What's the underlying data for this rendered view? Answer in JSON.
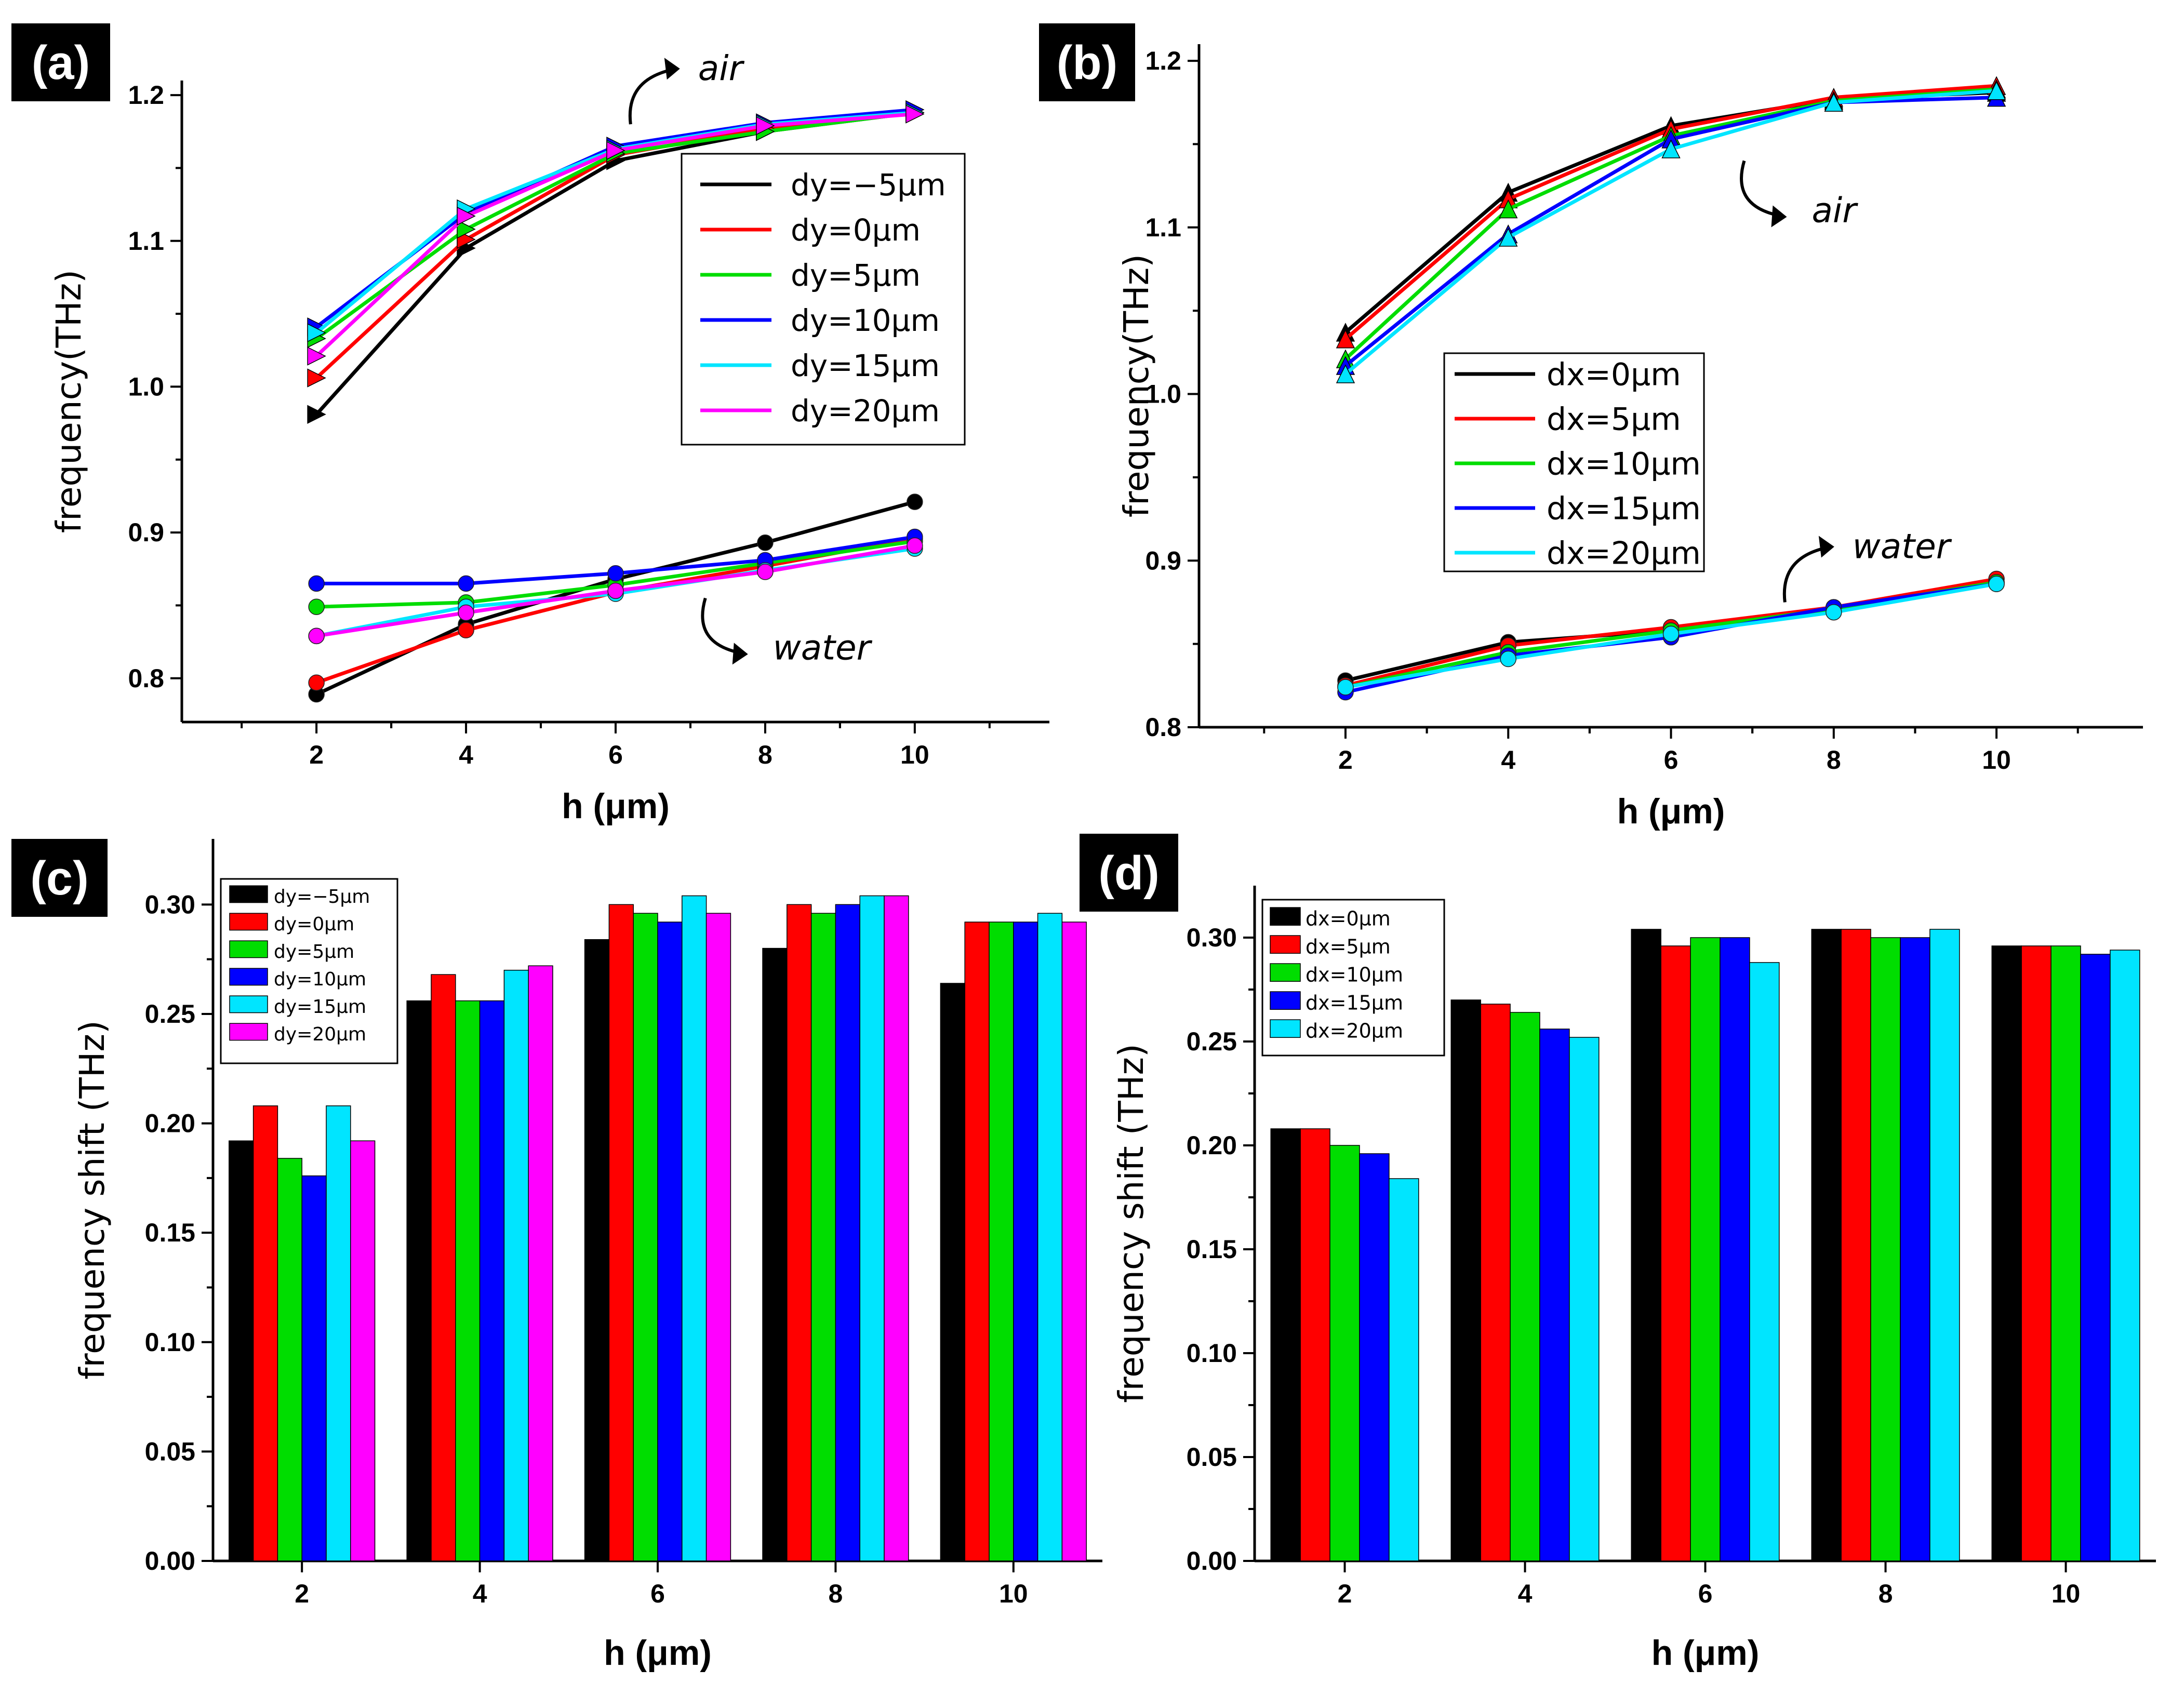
{
  "chart_data": [
    {
      "id": "a",
      "type": "line",
      "panel_label": "(a)",
      "xlabel": "h (μm)",
      "ylabel": "frequency(THz)",
      "x": [
        2,
        4,
        6,
        8,
        10
      ],
      "xticks": [
        "2",
        "4",
        "6",
        "8",
        "10"
      ],
      "xlim": [
        0.2,
        11.8
      ],
      "ylim": [
        0.77,
        1.21
      ],
      "yticks": [
        "0.8",
        "0.9",
        "1.0",
        "1.1",
        "1.2"
      ],
      "ytick_values": [
        0.8,
        0.9,
        1.0,
        1.1,
        1.2
      ],
      "legend_position": "top-right",
      "series": [
        {
          "name": "dy=−5μm",
          "color": "#000000",
          "air": [
            0.981,
            1.095,
            1.155,
            1.175,
            1.188
          ],
          "water": [
            0.789,
            0.837,
            0.868,
            0.893,
            0.921
          ]
        },
        {
          "name": "dy=0μm",
          "color": "#ff0000",
          "air": [
            1.006,
            1.101,
            1.159,
            1.177,
            1.188
          ],
          "water": [
            0.797,
            0.833,
            0.859,
            0.877,
            0.896
          ]
        },
        {
          "name": "dy=5μm",
          "color": "#00dd00",
          "air": [
            1.033,
            1.108,
            1.16,
            1.175,
            1.188
          ],
          "water": [
            0.849,
            0.852,
            0.864,
            0.879,
            0.894
          ]
        },
        {
          "name": "dy=10μm",
          "color": "#0000ff",
          "air": [
            1.041,
            1.119,
            1.165,
            1.181,
            1.19
          ],
          "water": [
            0.865,
            0.865,
            0.872,
            0.881,
            0.897
          ]
        },
        {
          "name": "dy=15μm",
          "color": "#00e5ff",
          "air": [
            1.037,
            1.122,
            1.163,
            1.18,
            1.188
          ],
          "water": [
            0.829,
            0.849,
            0.858,
            0.874,
            0.889
          ]
        },
        {
          "name": "dy=20μm",
          "color": "#ff00ff",
          "air": [
            1.021,
            1.117,
            1.162,
            1.179,
            1.187
          ],
          "water": [
            0.829,
            0.845,
            0.86,
            0.873,
            0.891
          ]
        }
      ],
      "annotations": [
        {
          "text": "air",
          "anchor": [
            6.2,
            1.18
          ],
          "direction": "up-right"
        },
        {
          "text": "water",
          "anchor": [
            7.2,
            0.855
          ],
          "direction": "down-right"
        }
      ]
    },
    {
      "id": "b",
      "type": "line",
      "panel_label": "(b)",
      "xlabel": "h (μm)",
      "ylabel": "frequency(THz)",
      "x": [
        2,
        4,
        6,
        8,
        10
      ],
      "xticks": [
        "2",
        "4",
        "6",
        "8",
        "10"
      ],
      "xlim": [
        0.2,
        11.8
      ],
      "ylim": [
        0.8,
        1.21
      ],
      "yticks": [
        "0.8",
        "0.9",
        "1.0",
        "1.1",
        "1.2"
      ],
      "ytick_values": [
        0.8,
        0.9,
        1.0,
        1.1,
        1.2
      ],
      "legend_position": "center-left",
      "series": [
        {
          "name": "dx=0μm",
          "color": "#000000",
          "air": [
            1.037,
            1.121,
            1.161,
            1.177,
            1.181
          ],
          "water": [
            0.828,
            0.851,
            0.858,
            0.872,
            0.887
          ]
        },
        {
          "name": "dx=5μm",
          "color": "#ff0000",
          "air": [
            1.033,
            1.117,
            1.159,
            1.178,
            1.185
          ],
          "water": [
            0.825,
            0.849,
            0.86,
            0.872,
            0.889
          ]
        },
        {
          "name": "dx=10μm",
          "color": "#00dd00",
          "air": [
            1.021,
            1.111,
            1.155,
            1.176,
            1.183
          ],
          "water": [
            0.824,
            0.845,
            0.858,
            0.871,
            0.887
          ]
        },
        {
          "name": "dx=15μm",
          "color": "#0000ff",
          "air": [
            1.017,
            1.096,
            1.153,
            1.175,
            1.178
          ],
          "water": [
            0.821,
            0.843,
            0.854,
            0.872,
            0.886
          ]
        },
        {
          "name": "dx=20μm",
          "color": "#00e5ff",
          "air": [
            1.012,
            1.094,
            1.147,
            1.175,
            1.182
          ],
          "water": [
            0.824,
            0.841,
            0.856,
            0.869,
            0.886
          ]
        }
      ],
      "annotations": [
        {
          "text": "air",
          "anchor": [
            6.9,
            1.14
          ],
          "direction": "down-right"
        },
        {
          "text": "water",
          "anchor": [
            7.4,
            0.875
          ],
          "direction": "up-right"
        }
      ]
    },
    {
      "id": "c",
      "type": "bar",
      "panel_label": "(c)",
      "xlabel": "h (μm)",
      "ylabel": "frequency shift (THz)",
      "categories": [
        "2",
        "4",
        "6",
        "8",
        "10"
      ],
      "ylim": [
        0,
        0.33
      ],
      "yticks": [
        "0.00",
        "0.05",
        "0.10",
        "0.15",
        "0.20",
        "0.25",
        "0.30"
      ],
      "ytick_values": [
        0,
        0.05,
        0.1,
        0.15,
        0.2,
        0.25,
        0.3
      ],
      "legend_position": "top-left",
      "series": [
        {
          "name": "dy=−5μm",
          "color": "#000000",
          "values": [
            0.192,
            0.256,
            0.284,
            0.28,
            0.264
          ]
        },
        {
          "name": "dy=0μm",
          "color": "#ff0000",
          "values": [
            0.208,
            0.268,
            0.3,
            0.3,
            0.292
          ]
        },
        {
          "name": "dy=5μm",
          "color": "#00dd00",
          "values": [
            0.184,
            0.256,
            0.296,
            0.296,
            0.292
          ]
        },
        {
          "name": "dy=10μm",
          "color": "#0000ff",
          "values": [
            0.176,
            0.256,
            0.292,
            0.3,
            0.292
          ]
        },
        {
          "name": "dy=15μm",
          "color": "#00e5ff",
          "values": [
            0.208,
            0.27,
            0.304,
            0.304,
            0.296
          ]
        },
        {
          "name": "dy=20μm",
          "color": "#ff00ff",
          "values": [
            0.192,
            0.272,
            0.296,
            0.304,
            0.292
          ]
        }
      ]
    },
    {
      "id": "d",
      "type": "bar",
      "panel_label": "(d)",
      "xlabel": "h (μm)",
      "ylabel": "frequency shift (THz)",
      "categories": [
        "2",
        "4",
        "6",
        "8",
        "10"
      ],
      "ylim": [
        0,
        0.325
      ],
      "yticks": [
        "0.00",
        "0.05",
        "0.10",
        "0.15",
        "0.20",
        "0.25",
        "0.30"
      ],
      "ytick_values": [
        0,
        0.05,
        0.1,
        0.15,
        0.2,
        0.25,
        0.3
      ],
      "legend_position": "top-left",
      "series": [
        {
          "name": "dx=0μm",
          "color": "#000000",
          "values": [
            0.208,
            0.27,
            0.304,
            0.304,
            0.296
          ]
        },
        {
          "name": "dx=5μm",
          "color": "#ff0000",
          "values": [
            0.208,
            0.268,
            0.296,
            0.304,
            0.296
          ]
        },
        {
          "name": "dx=10μm",
          "color": "#00dd00",
          "values": [
            0.2,
            0.264,
            0.3,
            0.3,
            0.296
          ]
        },
        {
          "name": "dx=15μm",
          "color": "#0000ff",
          "values": [
            0.196,
            0.256,
            0.3,
            0.3,
            0.292
          ]
        },
        {
          "name": "dx=20μm",
          "color": "#00e5ff",
          "values": [
            0.184,
            0.252,
            0.288,
            0.304,
            0.294
          ]
        }
      ]
    }
  ]
}
